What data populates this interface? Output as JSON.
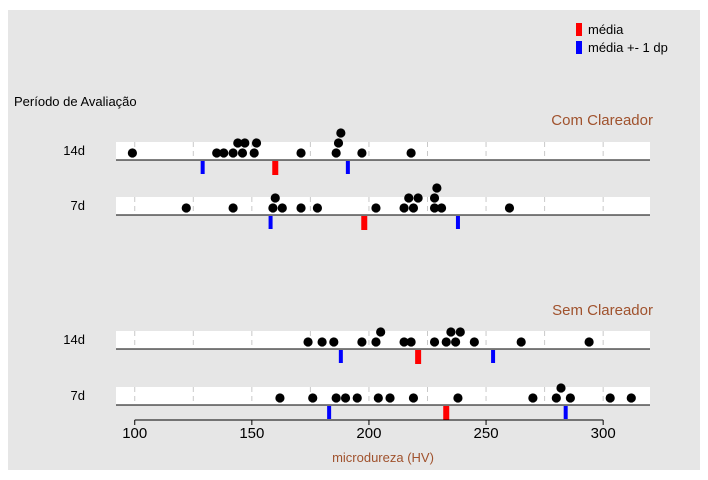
{
  "chart_data": {
    "type": "scatter",
    "title": "",
    "xlabel": "microdureza (HV)",
    "ylabel": "Período de Avaliação",
    "xlim": [
      92,
      320
    ],
    "xticks": [
      100,
      150,
      200,
      250,
      300
    ],
    "grid": "vertical dashed",
    "legend": {
      "placement": "top-right",
      "items": [
        {
          "label": "média",
          "color": "#ff0000"
        },
        {
          "label": "média +- 1 dp",
          "color": "#0000ff"
        }
      ]
    },
    "groups": [
      {
        "name": "Com Clareador",
        "color": "#a0522d",
        "rows": [
          {
            "label": "14d",
            "mean": 160,
            "sd_low": 129,
            "sd_high": 191,
            "points": [
              99,
              135,
              138,
              142,
              144,
              146,
              147,
              151,
              152,
              171,
              186,
              187,
              188,
              197,
              218
            ]
          },
          {
            "label": "7d",
            "mean": 198,
            "sd_low": 158,
            "sd_high": 238,
            "points": [
              122,
              142,
              159,
              160,
              163,
              171,
              178,
              203,
              215,
              217,
              219,
              221,
              228,
              228,
              229,
              231,
              260
            ]
          }
        ]
      },
      {
        "name": "Sem Clareador",
        "color": "#a0522d",
        "rows": [
          {
            "label": "14d",
            "mean": 221,
            "sd_low": 188,
            "sd_high": 253,
            "points": [
              174,
              180,
              185,
              197,
              203,
              205,
              215,
              218,
              228,
              233,
              235,
              237,
              239,
              245,
              265,
              294
            ]
          },
          {
            "label": "7d",
            "mean": 233,
            "sd_low": 183,
            "sd_high": 284,
            "points": [
              162,
              176,
              186,
              190,
              195,
              204,
              209,
              219,
              238,
              270,
              280,
              282,
              286,
              303,
              312
            ]
          }
        ]
      }
    ]
  }
}
